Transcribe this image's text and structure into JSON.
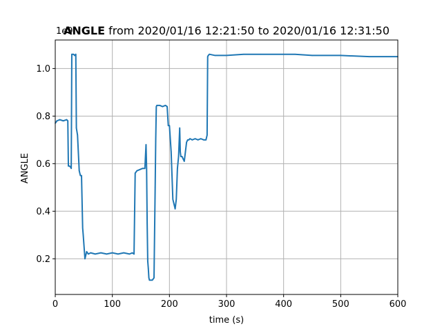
{
  "chart_data": {
    "type": "line",
    "title": {
      "bold_part": "ANGLE",
      "rest": " from 2020/01/16 12:21:50 to 2020/01/16 12:31:50"
    },
    "xlabel": "time (s)",
    "ylabel": "ANGLE",
    "y_offset_label": "1e9",
    "xlim": [
      0,
      600
    ],
    "ylim": [
      0.05,
      1.12
    ],
    "y_scale_note": "values in units of 1e9",
    "x_ticks": [
      0,
      100,
      200,
      300,
      400,
      500,
      600
    ],
    "x_tick_labels": [
      "0",
      "100",
      "200",
      "300",
      "400",
      "500",
      "600"
    ],
    "y_ticks": [
      0.2,
      0.4,
      0.6,
      0.8,
      1.0
    ],
    "y_tick_labels": [
      "0.2",
      "0.4",
      "0.6",
      "0.8",
      "1.0"
    ],
    "grid": true,
    "series": [
      {
        "color": "#1f77b4",
        "x": [
          0,
          3,
          8,
          14,
          20,
          22,
          23,
          25,
          27,
          28,
          29,
          32,
          34,
          36,
          37,
          39,
          42,
          44,
          46,
          48,
          49,
          52,
          55,
          58,
          62,
          70,
          80,
          90,
          100,
          110,
          120,
          130,
          135,
          138,
          140,
          143,
          148,
          153,
          157,
          159,
          160,
          161,
          162,
          163,
          164,
          165,
          167,
          170,
          173,
          175,
          176,
          177,
          178,
          180,
          183,
          188,
          193,
          196,
          198,
          200,
          203,
          206,
          208,
          210,
          212,
          214,
          216,
          218,
          219,
          220,
          222,
          224,
          226,
          228,
          230,
          232,
          234,
          236,
          240,
          245,
          250,
          255,
          260,
          264,
          266,
          267,
          268,
          270,
          280,
          300,
          330,
          360,
          400,
          420,
          450,
          500,
          550,
          580,
          600
        ],
        "y": [
          0.77,
          0.78,
          0.785,
          0.78,
          0.785,
          0.78,
          0.59,
          0.59,
          0.585,
          0.58,
          1.06,
          1.06,
          1.055,
          1.06,
          0.75,
          0.72,
          0.57,
          0.55,
          0.55,
          0.33,
          0.3,
          0.2,
          0.23,
          0.22,
          0.225,
          0.22,
          0.225,
          0.22,
          0.225,
          0.22,
          0.225,
          0.22,
          0.225,
          0.22,
          0.56,
          0.57,
          0.575,
          0.58,
          0.58,
          0.68,
          0.58,
          0.35,
          0.19,
          0.16,
          0.12,
          0.11,
          0.11,
          0.11,
          0.12,
          0.5,
          0.7,
          0.84,
          0.845,
          0.845,
          0.845,
          0.84,
          0.845,
          0.84,
          0.76,
          0.76,
          0.65,
          0.45,
          0.43,
          0.41,
          0.45,
          0.58,
          0.63,
          0.75,
          0.65,
          0.63,
          0.63,
          0.62,
          0.61,
          0.65,
          0.69,
          0.7,
          0.7,
          0.705,
          0.7,
          0.705,
          0.7,
          0.705,
          0.7,
          0.7,
          0.72,
          1.05,
          1.055,
          1.06,
          1.055,
          1.055,
          1.06,
          1.06,
          1.06,
          1.06,
          1.055,
          1.055,
          1.05,
          1.05,
          1.05
        ]
      }
    ]
  }
}
